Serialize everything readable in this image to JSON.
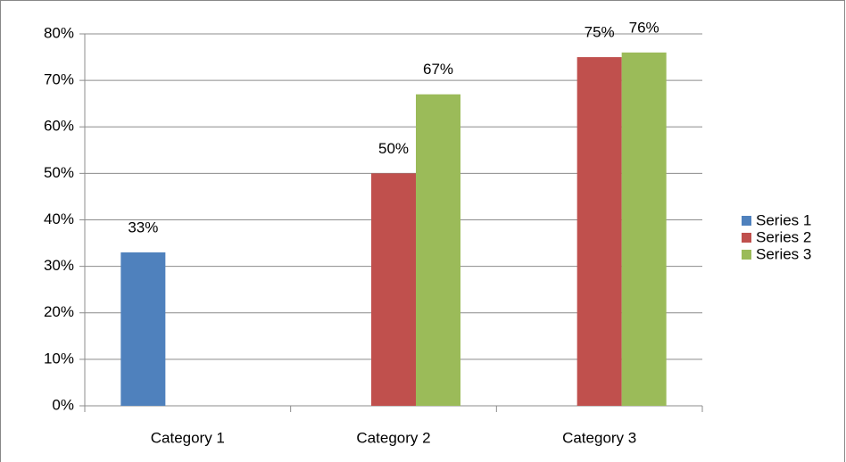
{
  "chart_data": {
    "type": "bar",
    "categories": [
      "Category 1",
      "Category 2",
      "Category 3"
    ],
    "series": [
      {
        "name": "Series 1",
        "color": "#4f81bd",
        "values": [
          33,
          null,
          null
        ],
        "value_labels": [
          "33%",
          null,
          null
        ]
      },
      {
        "name": "Series 2",
        "color": "#c0504d",
        "values": [
          null,
          50,
          75
        ],
        "value_labels": [
          null,
          "50%",
          "75%"
        ]
      },
      {
        "name": "Series 3",
        "color": "#9bbb59",
        "values": [
          null,
          67,
          76
        ],
        "value_labels": [
          null,
          "67%",
          "76%"
        ]
      }
    ],
    "ylim": [
      0,
      80
    ],
    "yticks": [
      {
        "value": 0,
        "label": "0%"
      },
      {
        "value": 10,
        "label": "10%"
      },
      {
        "value": 20,
        "label": "20%"
      },
      {
        "value": 30,
        "label": "30%"
      },
      {
        "value": 40,
        "label": "40%"
      },
      {
        "value": 50,
        "label": "50%"
      },
      {
        "value": 60,
        "label": "60%"
      },
      {
        "value": 70,
        "label": "70%"
      },
      {
        "value": 80,
        "label": "80%"
      }
    ],
    "grid": true,
    "legend": "right"
  }
}
